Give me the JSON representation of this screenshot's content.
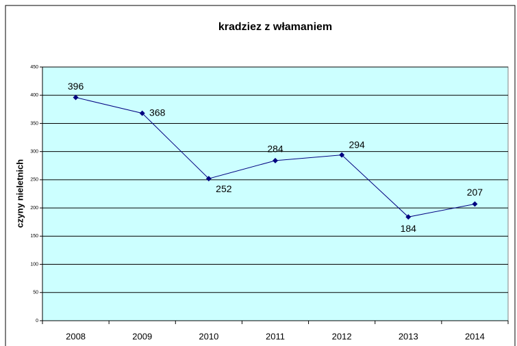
{
  "chart_data": {
    "type": "line",
    "title": "kradziez z włamaniem",
    "y_label": "czyny nieletnich",
    "categories": [
      "2008",
      "2009",
      "2010",
      "2011",
      "2012",
      "2013",
      "2014"
    ],
    "series": [
      {
        "name": "kradziez z włamaniem",
        "color": "#000080",
        "values": [
          396,
          368,
          252,
          284,
          294,
          184,
          207
        ]
      }
    ],
    "ylim": [
      0,
      450
    ],
    "yticks": [
      0,
      50,
      100,
      150,
      200,
      250,
      300,
      350,
      400,
      450
    ],
    "grid": true,
    "plot_background": "#ccffff"
  }
}
